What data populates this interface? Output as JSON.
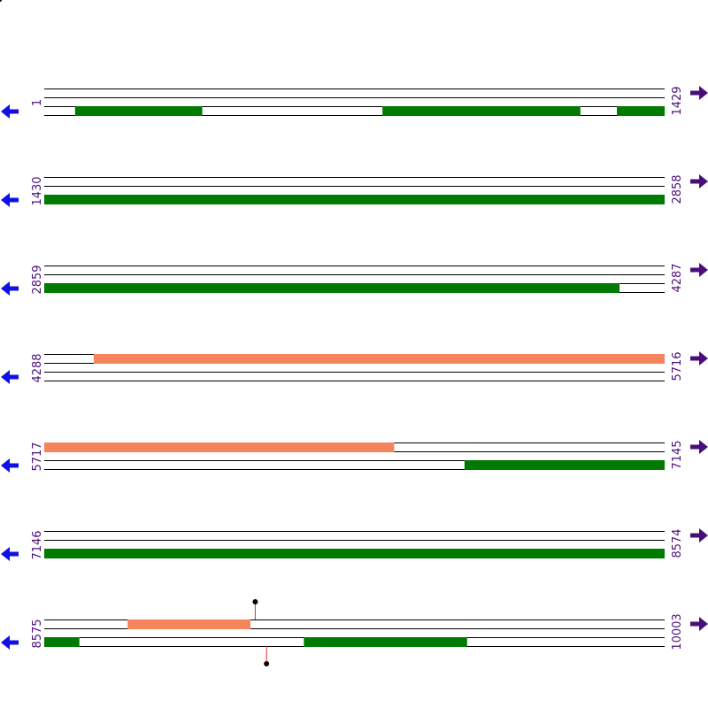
{
  "map": {
    "total_length": 10003,
    "colors": {
      "forward_feature": "#f4845c",
      "reverse_feature": "#007a00",
      "arrow_left": "#1010e6",
      "arrow_right": "#4a0e7a",
      "label": "#4a0e7a",
      "line": "#000000",
      "site_line": "#e0302a",
      "site_dot": "#000000"
    },
    "rows": [
      {
        "start": "1",
        "end": "1429",
        "start_num": 1,
        "end_num": 1429,
        "left_arrow_icon": "arrow-left-icon",
        "right_arrow_icon": "arrow-right-icon",
        "features": [
          {
            "strand": "reverse",
            "from": 72,
            "to": 364
          },
          {
            "strand": "reverse",
            "from": 780,
            "to": 1235
          },
          {
            "strand": "reverse",
            "from": 1320,
            "to": 1429
          }
        ],
        "sites": []
      },
      {
        "start": "1430",
        "end": "2858",
        "start_num": 1430,
        "end_num": 2858,
        "left_arrow_icon": "arrow-left-icon",
        "right_arrow_icon": "arrow-right-icon",
        "features": [
          {
            "strand": "reverse",
            "from": 1430,
            "to": 2858
          }
        ],
        "sites": []
      },
      {
        "start": "2859",
        "end": "4287",
        "start_num": 2859,
        "end_num": 4287,
        "left_arrow_icon": "arrow-left-icon",
        "right_arrow_icon": "arrow-right-icon",
        "features": [
          {
            "strand": "reverse",
            "from": 2859,
            "to": 4183
          }
        ],
        "sites": []
      },
      {
        "start": "4288",
        "end": "5716",
        "start_num": 4288,
        "end_num": 5716,
        "left_arrow_icon": "arrow-left-icon",
        "right_arrow_icon": "arrow-right-icon",
        "features": [
          {
            "strand": "forward",
            "from": 4402,
            "to": 5716
          }
        ],
        "sites": []
      },
      {
        "start": "5717",
        "end": "7145",
        "start_num": 5717,
        "end_num": 7145,
        "left_arrow_icon": "arrow-left-icon",
        "right_arrow_icon": "arrow-right-icon",
        "features": [
          {
            "strand": "forward",
            "from": 5717,
            "to": 6522
          },
          {
            "strand": "reverse",
            "from": 6685,
            "to": 7145
          }
        ],
        "sites": []
      },
      {
        "start": "7146",
        "end": "8574",
        "start_num": 7146,
        "end_num": 8574,
        "left_arrow_icon": "arrow-left-icon",
        "right_arrow_icon": "arrow-right-icon",
        "features": [
          {
            "strand": "reverse",
            "from": 7146,
            "to": 8574
          }
        ],
        "sites": []
      },
      {
        "start": "8575",
        "end": "10003",
        "start_num": 8575,
        "end_num": 10003,
        "left_arrow_icon": "arrow-left-icon",
        "right_arrow_icon": "arrow-right-icon",
        "features": [
          {
            "strand": "forward",
            "from": 8767,
            "to": 9049
          },
          {
            "strand": "reverse",
            "from": 8575,
            "to": 8655
          },
          {
            "strand": "reverse",
            "from": 9173,
            "to": 9548
          }
        ],
        "sites": [
          {
            "position": 9061,
            "side": "top"
          },
          {
            "position": 9087,
            "side": "bottom"
          }
        ]
      }
    ]
  }
}
